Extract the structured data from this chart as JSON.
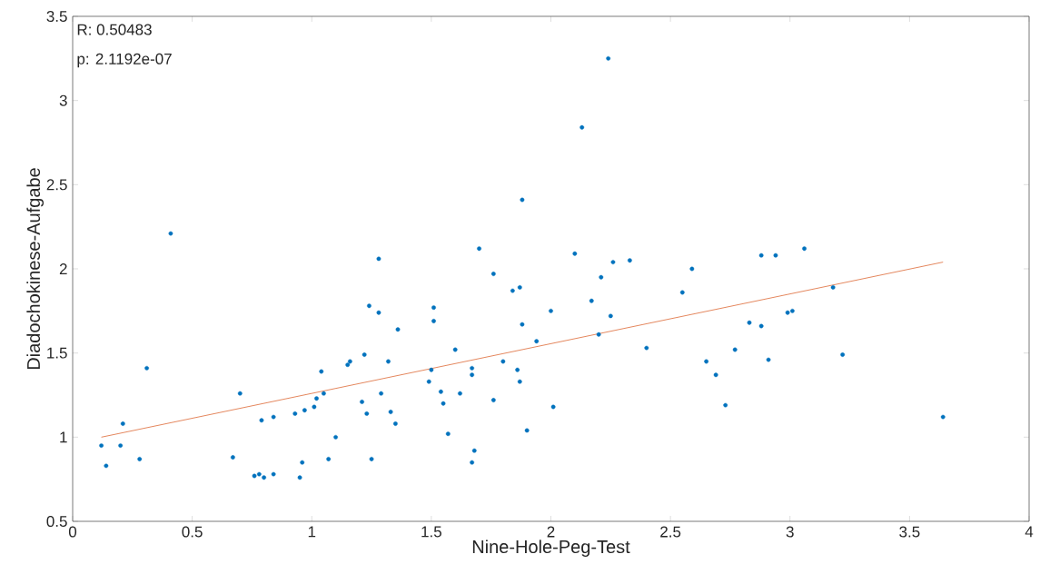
{
  "chart_data": {
    "type": "scatter",
    "xlabel": "Nine-Hole-Peg-Test",
    "ylabel": "Diadochokinese-Aufgabe",
    "annotations": [
      "R: 0.50483",
      "p: 2.1192e-07"
    ],
    "xlim": [
      0,
      4
    ],
    "ylim": [
      0.5,
      3.5
    ],
    "xticks": [
      0,
      0.5,
      1,
      1.5,
      2,
      2.5,
      3,
      3.5,
      4
    ],
    "yticks": [
      0.5,
      1,
      1.5,
      2,
      2.5,
      3,
      3.5
    ],
    "grid": false,
    "series": [
      {
        "color": "#0072bd",
        "marker": "circle",
        "x": [
          0.12,
          0.14,
          0.21,
          0.2,
          0.28,
          0.31,
          0.41,
          0.67,
          0.7,
          0.76,
          0.78,
          0.8,
          0.79,
          0.84,
          0.84,
          0.93,
          0.95,
          0.96,
          0.97,
          1.01,
          1.02,
          1.04,
          1.05,
          1.07,
          1.1,
          1.15,
          1.16,
          1.21,
          1.22,
          1.23,
          1.24,
          1.25,
          1.28,
          1.28,
          1.29,
          1.32,
          1.33,
          1.35,
          1.36,
          1.49,
          1.5,
          1.51,
          1.51,
          1.54,
          1.55,
          1.57,
          1.6,
          1.62,
          1.67,
          1.67,
          1.68,
          1.67,
          1.7,
          1.76,
          1.76,
          1.8,
          1.84,
          1.87,
          1.86,
          1.87,
          1.88,
          1.88,
          1.9,
          1.94,
          2.0,
          2.01,
          2.1,
          2.13,
          2.17,
          2.2,
          2.21,
          2.24,
          2.25,
          2.26,
          2.33,
          2.4,
          2.55,
          2.59,
          2.65,
          2.69,
          2.73,
          2.77,
          2.83,
          2.88,
          2.88,
          2.91,
          2.94,
          2.99,
          3.01,
          3.06,
          3.18,
          3.22,
          3.64
        ],
        "values": [
          0.95,
          0.83,
          1.08,
          0.95,
          0.87,
          1.41,
          2.21,
          0.88,
          1.26,
          0.77,
          0.78,
          0.76,
          1.1,
          1.12,
          0.78,
          1.14,
          0.76,
          0.85,
          1.16,
          1.18,
          1.23,
          1.39,
          1.26,
          0.87,
          1.0,
          1.43,
          1.45,
          1.21,
          1.49,
          1.14,
          1.78,
          0.87,
          1.74,
          2.06,
          1.26,
          1.45,
          1.15,
          1.08,
          1.64,
          1.33,
          1.4,
          1.77,
          1.69,
          1.27,
          1.2,
          1.02,
          1.52,
          1.26,
          1.41,
          1.37,
          0.92,
          0.85,
          2.12,
          1.97,
          1.22,
          1.45,
          1.87,
          1.89,
          1.4,
          1.33,
          1.67,
          2.41,
          1.04,
          1.57,
          1.75,
          1.18,
          2.09,
          2.84,
          1.81,
          1.61,
          1.95,
          3.25,
          1.72,
          2.04,
          2.05,
          1.53,
          1.86,
          2.0,
          1.45,
          1.37,
          1.19,
          1.52,
          1.68,
          2.08,
          1.66,
          1.46,
          2.08,
          1.74,
          1.75,
          2.12,
          1.89,
          1.49,
          1.12
        ]
      },
      {
        "type": "line",
        "color": "#d95319",
        "marker": "none",
        "line_style": "solid",
        "x": [
          0.12,
          3.64
        ],
        "values": [
          1.0,
          2.04
        ]
      }
    ]
  }
}
